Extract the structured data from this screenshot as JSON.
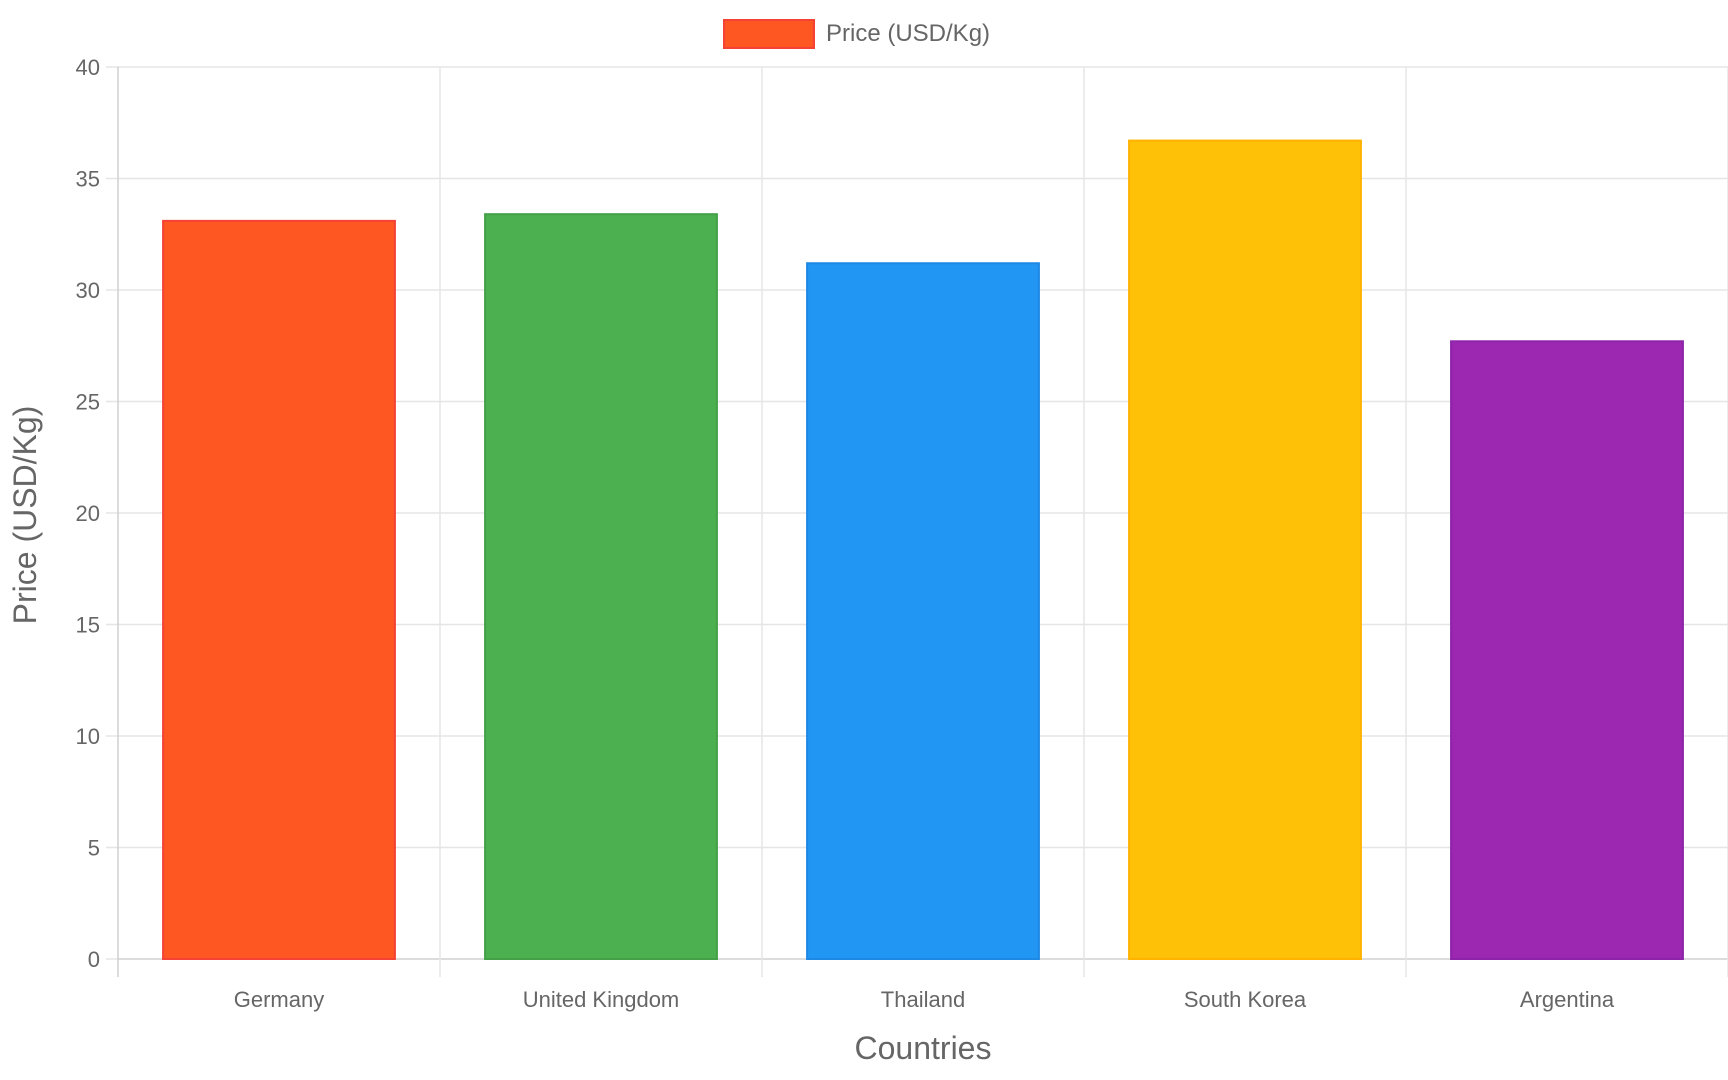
{
  "chart_data": {
    "type": "bar",
    "categories": [
      "Germany",
      "United Kingdom",
      "Thailand",
      "South Korea",
      "Argentina"
    ],
    "series": [
      {
        "name": "Price (USD/Kg)",
        "values": [
          33.1,
          33.4,
          31.2,
          36.7,
          27.7
        ],
        "colors": [
          "#FF5722",
          "#4CAF50",
          "#2196F3",
          "#FFC107",
          "#9C27B0"
        ],
        "border_colors": [
          "#F44336",
          "#43A047",
          "#1E88E5",
          "#FFB300",
          "#8E24AA"
        ]
      }
    ],
    "xlabel": "Countries",
    "ylabel": "Price (USD/Kg)",
    "ylim": [
      0,
      40
    ],
    "yticks": [
      0,
      5,
      10,
      15,
      20,
      25,
      30,
      35,
      40
    ],
    "grid": true,
    "legend": {
      "position": "top-center",
      "label": "Price (USD/Kg)",
      "color": "#FF5722",
      "border_color": "#F44336"
    }
  }
}
